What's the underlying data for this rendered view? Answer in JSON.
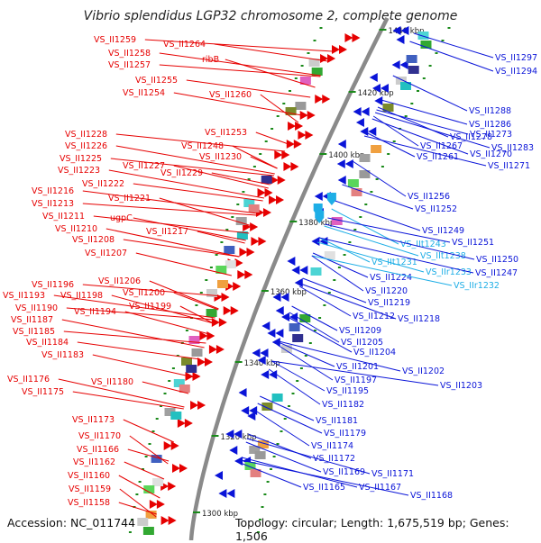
{
  "title": "Vibrio splendidus LGP32 chromosome 2, complete genome",
  "footer": {
    "accession": "Accession: NC_011744",
    "topology": "Topology: circular; Length: 1,675,519 bp; Genes: 1,506"
  },
  "scale_labels": [
    "1440 kbp",
    "1420 kbp",
    "1400 kbp",
    "1380 kbp",
    "1360 kbp",
    "1340 kbp",
    "1320 kbp",
    "1300 kbp"
  ],
  "left_labels": [
    "VS_II1259",
    "VS_II1264",
    "VS_II1258",
    "ribB",
    "VS_II1257",
    "VS_II1255",
    "VS_II1254",
    "VS_II1260",
    "VS_II1253",
    "VS_II1228",
    "VS_II1248",
    "VS_II1226",
    "VS_II1230",
    "VS_II1225",
    "VS_II1227",
    "VS_II1223",
    "VS_II1229",
    "VS_II1222",
    "VS_II1216",
    "VS_II1221",
    "VS_II1213",
    "VS_II1211",
    "ugpC",
    "VS_II1210",
    "VS_II1217",
    "VS_II1208",
    "VS_II1207",
    "VS_II1206",
    "VS_II1196",
    "VS_II1200",
    "VS_II1193",
    "VS_II1198",
    "VS_II1190",
    "VS_II1199",
    "VS_II1194",
    "VS_II1187",
    "VS_II1185",
    "VS_II1184",
    "VS_II1183",
    "VS_II1176",
    "VS_II1180",
    "VS_II1175",
    "VS_II1173",
    "VS_II1170",
    "VS_II1166",
    "VS_II1162",
    "VS_II1160",
    "VS_II1159",
    "VS_II1158"
  ],
  "right_labels": [
    "VS_II1297",
    "VS_II1294",
    "VS_II1288",
    "VS_II1286",
    "VS_II1278",
    "VS_II1283",
    "VS_II1273",
    "VS_II1267",
    "VS_II1270",
    "VS_II1261",
    "VS_II1271",
    "VS_II1256",
    "VS_II1252",
    "VS_II1249",
    "VS_IIt1243",
    "VS_II1251",
    "VS_IIt1238",
    "VS_II1250",
    "VS_IIt1231",
    "VS_IIr1233",
    "VS_II1247",
    "VS_II1224",
    "VS_IIr1232",
    "VS_II1220",
    "VS_II1219",
    "VS_II1212",
    "VS_II1218",
    "VS_II1209",
    "VS_II1205",
    "VS_II1204",
    "VS_II1201",
    "VS_II1202",
    "VS_II1197",
    "VS_II1203",
    "VS_II1195",
    "VS_II1182",
    "VS_II1181",
    "VS_II1179",
    "VS_II1174",
    "VS_II1172",
    "VS_II1169",
    "VS_II1171",
    "VS_II1165",
    "VS_II1167",
    "VS_II1168"
  ],
  "colors": {
    "forward_gene": "#e60000",
    "reverse_gene": "#0a14d8",
    "rna_gene": "#1eaee6",
    "backbone": "#8a8a8a",
    "tick": "#1a8a1a"
  }
}
